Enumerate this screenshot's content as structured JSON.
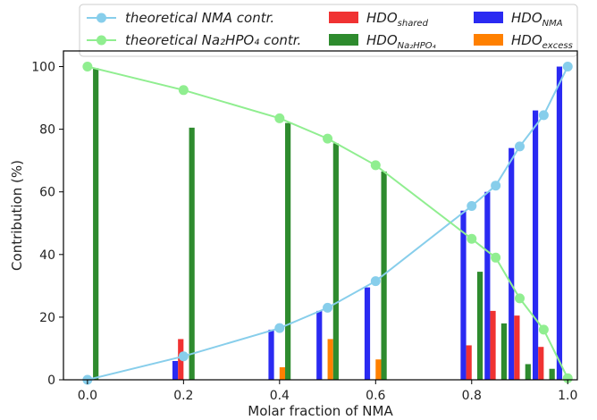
{
  "chart_data": {
    "type": "bar",
    "xlabel": "Molar fraction of NMA",
    "ylabel": "Contribution (%)",
    "xlim": [
      -0.05,
      1.02
    ],
    "ylim": [
      0,
      105
    ],
    "xticks": [
      0.0,
      0.2,
      0.4,
      0.6,
      0.8,
      1.0
    ],
    "xtick_labels": [
      "0.0",
      "0.2",
      "0.4",
      "0.6",
      "0.8",
      "1.0"
    ],
    "yticks": [
      0,
      20,
      40,
      60,
      80,
      100
    ],
    "ytick_labels": [
      "0",
      "20",
      "40",
      "60",
      "80",
      "100"
    ],
    "legend_position": "top",
    "x": [
      0.0,
      0.2,
      0.4,
      0.5,
      0.6,
      0.8,
      0.85,
      0.9,
      0.95,
      1.0
    ],
    "bar_series": [
      {
        "key": "nma",
        "base": "HDO",
        "sub": "NMA",
        "color": "#2a2af2",
        "values": [
          0,
          6,
          16,
          22,
          29.5,
          54,
          60,
          74,
          86,
          100
        ]
      },
      {
        "key": "shared",
        "base": "HDO",
        "sub": "shared",
        "color": "#f03232",
        "values": [
          0,
          13,
          0,
          0,
          0,
          11,
          22,
          20.5,
          10.5,
          0
        ]
      },
      {
        "key": "excess",
        "base": "HDO",
        "sub": "excess",
        "color": "#ff8000",
        "values": [
          0,
          0,
          4,
          13,
          6.5,
          0,
          0,
          0,
          0,
          0
        ]
      },
      {
        "key": "na2hpo4",
        "base": "HDO",
        "sub": "Na₂HPO₄",
        "color": "#2e8b2e",
        "values": [
          99.5,
          80.5,
          82,
          75.5,
          66.5,
          34.5,
          18,
          5,
          3.5,
          0
        ]
      }
    ],
    "line_series": [
      {
        "key": "theo_nma",
        "label": "theoretical NMA contr.",
        "color": "#87ceeb",
        "x": [
          0.0,
          0.2,
          0.4,
          0.5,
          0.6,
          0.8,
          0.85,
          0.9,
          0.95,
          1.0
        ],
        "values": [
          0,
          7.5,
          16.5,
          23,
          31.5,
          55.5,
          62,
          74.5,
          84.5,
          100
        ]
      },
      {
        "key": "theo_na",
        "label": "theoretical Na₂HPO₄ contr.",
        "color": "#90ee90",
        "x": [
          0.0,
          0.2,
          0.4,
          0.5,
          0.6,
          0.8,
          0.85,
          0.9,
          0.95,
          1.0
        ],
        "values": [
          100,
          92.5,
          83.5,
          77,
          68.5,
          45,
          39,
          26,
          16,
          0.5
        ]
      }
    ],
    "legend": {
      "line_labels": [
        "theoretical NMA contr.",
        "theoretical Na₂HPO₄ contr."
      ],
      "bar_order": [
        "shared",
        "na2hpo4",
        "nma",
        "excess"
      ]
    }
  }
}
